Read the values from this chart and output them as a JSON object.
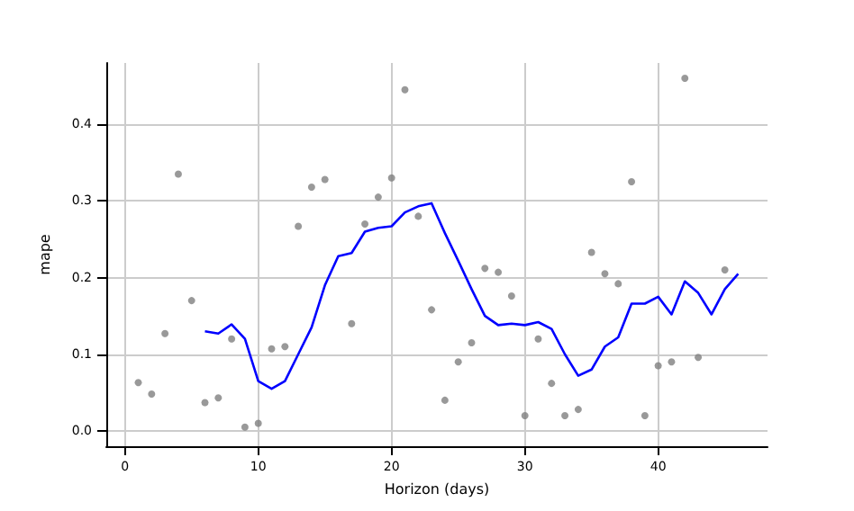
{
  "chart_data": {
    "type": "scatter",
    "xlabel": "Horizon (days)",
    "ylabel": "mape",
    "xlim": [
      -1.4,
      48.2
    ],
    "ylim": [
      -0.02,
      0.48
    ],
    "xticks": [
      0,
      10,
      20,
      30,
      40
    ],
    "yticks": [
      {
        "value": 0,
        "label": "0.0"
      },
      {
        "value": 0.1,
        "label": "0.1"
      },
      {
        "value": 0.2,
        "label": "0.2"
      },
      {
        "value": 0.3,
        "label": "0.3"
      },
      {
        "value": 0.4,
        "label": "0.4"
      }
    ],
    "grid": true,
    "marker": "circle",
    "series": [
      {
        "color": "#808080",
        "x": [
          1,
          2,
          3,
          4,
          5,
          6,
          7,
          8,
          9,
          10,
          11,
          12,
          13,
          14,
          15,
          17,
          18,
          19,
          20,
          21,
          22,
          23,
          24,
          25,
          26,
          27,
          28,
          29,
          30,
          31,
          32,
          33,
          34,
          35,
          36,
          37,
          38,
          39,
          40,
          41,
          42,
          43,
          45
        ],
        "values": [
          0.063,
          0.048,
          0.127,
          0.335,
          0.17,
          0.037,
          0.043,
          0.12,
          0.005,
          0.01,
          0.107,
          0.11,
          0.267,
          0.318,
          0.328,
          0.14,
          0.27,
          0.305,
          0.33,
          0.445,
          0.28,
          0.158,
          0.04,
          0.09,
          0.115,
          0.212,
          0.207,
          0.176,
          0.02,
          0.12,
          0.062,
          0.02,
          0.028,
          0.233,
          0.205,
          0.192,
          0.325,
          0.02,
          0.085,
          0.09,
          0.46,
          0.096,
          0.21
        ]
      },
      {
        "type": "line",
        "color": "#0000ff",
        "marker": "none",
        "x": [
          6,
          7,
          8,
          9,
          10,
          11,
          12,
          13,
          14,
          15,
          16,
          17,
          18,
          19,
          20,
          21,
          22,
          23,
          24,
          25,
          26,
          27,
          28,
          29,
          30,
          31,
          32,
          33,
          34,
          35,
          36,
          37,
          38,
          39,
          40,
          41,
          42,
          43,
          44,
          45,
          46
        ],
        "values": [
          0.13,
          0.127,
          0.139,
          0.12,
          0.065,
          0.055,
          0.065,
          0.1,
          0.135,
          0.19,
          0.228,
          0.232,
          0.26,
          0.265,
          0.267,
          0.285,
          0.293,
          0.297,
          0.258,
          0.222,
          0.185,
          0.15,
          0.138,
          0.14,
          0.138,
          0.142,
          0.133,
          0.1,
          0.072,
          0.08,
          0.11,
          0.122,
          0.166,
          0.166,
          0.175,
          0.152,
          0.195,
          0.18,
          0.152,
          0.185,
          0.205
        ]
      }
    ]
  }
}
